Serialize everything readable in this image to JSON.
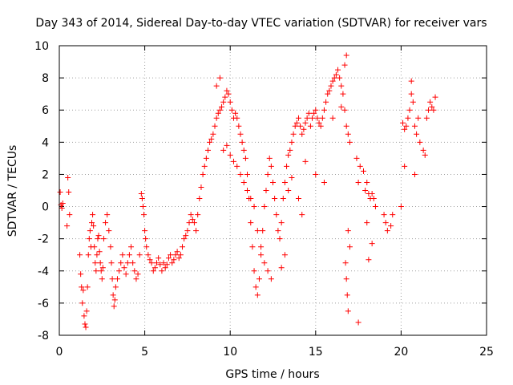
{
  "chart_data": {
    "type": "scatter",
    "title": "Day 343 of 2014, Sidereal Day-to-day VTEC variation (SDTVAR) for receiver vars",
    "xlabel": "GPS time / hours",
    "ylabel": "SDTVAR / TECUs",
    "xlim": [
      0,
      25
    ],
    "ylim": [
      -8,
      10
    ],
    "xticks": [
      0,
      5,
      10,
      15,
      20,
      25
    ],
    "yticks": [
      -8,
      -6,
      -4,
      -2,
      0,
      2,
      4,
      6,
      8,
      10
    ],
    "grid": true,
    "marker": "+",
    "color": "#ff0000",
    "series": [
      {
        "name": "SDTVAR",
        "x": [
          0.05,
          0.1,
          0.15,
          0.2,
          0.5,
          0.55,
          0.6,
          0.45,
          1.2,
          1.25,
          1.3,
          1.35,
          1.4,
          1.45,
          1.5,
          1.55,
          1.6,
          1.65,
          1.7,
          1.75,
          1.8,
          1.85,
          1.9,
          1.95,
          2.0,
          2.05,
          2.1,
          2.15,
          2.2,
          2.25,
          2.3,
          2.35,
          2.4,
          2.45,
          2.5,
          2.55,
          2.6,
          2.7,
          2.8,
          2.9,
          3.0,
          3.05,
          3.1,
          3.15,
          3.2,
          3.25,
          3.3,
          3.4,
          3.5,
          3.6,
          3.7,
          3.8,
          3.9,
          4.0,
          4.1,
          4.2,
          4.3,
          4.4,
          4.5,
          4.6,
          4.7,
          4.8,
          4.85,
          4.9,
          4.95,
          5.0,
          5.05,
          5.1,
          5.2,
          5.3,
          5.4,
          5.5,
          5.6,
          5.7,
          5.8,
          5.9,
          6.0,
          6.1,
          6.2,
          6.3,
          6.4,
          6.5,
          6.6,
          6.7,
          6.8,
          6.9,
          7.0,
          7.1,
          7.2,
          7.3,
          7.4,
          7.5,
          7.6,
          7.7,
          7.8,
          7.9,
          8.0,
          8.1,
          8.2,
          8.3,
          8.4,
          8.5,
          8.6,
          8.7,
          8.8,
          8.9,
          9.0,
          9.1,
          9.2,
          9.3,
          9.4,
          9.5,
          9.6,
          9.7,
          9.8,
          9.9,
          10.0,
          10.1,
          10.2,
          10.3,
          10.4,
          10.5,
          10.6,
          10.7,
          10.8,
          10.9,
          11.0,
          11.1,
          11.2,
          11.3,
          11.4,
          11.5,
          11.6,
          11.7,
          11.8,
          11.9,
          12.0,
          12.1,
          12.2,
          12.3,
          12.4,
          12.5,
          12.6,
          12.7,
          12.8,
          12.9,
          13.0,
          13.1,
          13.2,
          13.3,
          13.4,
          13.5,
          13.6,
          13.7,
          13.8,
          13.9,
          14.0,
          14.1,
          14.2,
          14.3,
          14.4,
          14.5,
          14.6,
          14.7,
          14.8,
          14.9,
          15.0,
          15.1,
          15.2,
          15.3,
          15.4,
          15.5,
          15.6,
          15.7,
          15.8,
          15.9,
          16.0,
          16.1,
          16.2,
          16.3,
          16.4,
          16.5,
          16.6,
          16.7,
          16.8,
          16.9,
          17.0,
          17.4,
          17.5,
          17.6,
          17.8,
          17.9,
          18.0,
          18.1,
          18.2,
          18.3,
          18.4,
          18.5,
          19.0,
          19.1,
          19.2,
          19.4,
          19.5,
          20.0,
          20.1,
          20.2,
          20.3,
          20.4,
          20.5,
          20.6,
          20.7,
          20.8,
          20.9,
          21.0,
          21.1,
          21.3,
          21.4,
          21.5,
          21.6,
          21.7,
          21.8,
          21.9,
          22.0,
          9.2,
          9.4,
          9.6,
          9.8,
          10.0,
          10.2,
          10.4,
          10.6,
          10.8,
          11.0,
          11.2,
          11.4,
          11.6,
          11.8,
          12.0,
          12.2,
          12.4,
          13.0,
          13.2,
          13.4,
          13.6,
          14.0,
          14.2,
          14.4,
          15.0,
          15.5,
          16.0,
          16.5,
          16.7,
          16.8,
          16.9,
          17.0,
          16.75,
          16.8,
          16.85,
          16.9,
          17.5,
          18.0,
          18.1,
          18.3,
          20.2,
          20.6,
          20.8
        ],
        "y": [
          0.9,
          0.1,
          -0.1,
          0.2,
          1.8,
          0.9,
          -0.5,
          -1.2,
          -3.0,
          -4.2,
          -5.0,
          -6.0,
          -5.2,
          -6.8,
          -7.3,
          -7.5,
          -6.5,
          -5.0,
          -3.0,
          -2.0,
          -1.5,
          -2.5,
          -1.0,
          -0.5,
          -1.2,
          -2.5,
          -3.5,
          -4.0,
          -3.0,
          -2.0,
          -1.8,
          -2.8,
          -3.5,
          -4.0,
          -4.5,
          -3.8,
          -2.0,
          -1.0,
          -0.5,
          -1.5,
          -2.5,
          -3.5,
          -4.5,
          -5.5,
          -6.2,
          -5.8,
          -5.0,
          -4.5,
          -4.0,
          -3.5,
          -3.0,
          -3.8,
          -4.2,
          -3.5,
          -3.0,
          -2.5,
          -3.5,
          -4.0,
          -4.5,
          -4.2,
          -3.0,
          0.8,
          0.5,
          0.0,
          -0.5,
          -1.5,
          -2.0,
          -2.5,
          -3.0,
          -3.3,
          -3.5,
          -4.0,
          -3.8,
          -3.5,
          -3.2,
          -3.6,
          -4.0,
          -3.5,
          -3.8,
          -3.6,
          -3.2,
          -3.0,
          -3.5,
          -3.3,
          -3.0,
          -2.8,
          -3.2,
          -3.0,
          -2.5,
          -2.0,
          -1.8,
          -1.5,
          -1.0,
          -0.5,
          -0.8,
          -1.0,
          -1.5,
          -0.5,
          0.5,
          1.2,
          2.0,
          2.5,
          3.0,
          3.5,
          4.0,
          4.2,
          4.5,
          5.0,
          5.5,
          5.8,
          6.0,
          6.2,
          6.5,
          6.8,
          7.2,
          7.0,
          6.5,
          6.0,
          5.5,
          5.8,
          5.5,
          5.0,
          4.5,
          4.0,
          3.5,
          3.0,
          2.0,
          0.5,
          -1.0,
          -2.5,
          -4.0,
          -5.0,
          -5.5,
          -4.5,
          -3.0,
          -1.5,
          0.0,
          1.0,
          2.0,
          3.0,
          2.5,
          1.5,
          0.5,
          -0.5,
          -1.5,
          -2.0,
          -1.0,
          0.5,
          1.5,
          2.5,
          3.2,
          3.5,
          4.0,
          4.5,
          5.0,
          5.2,
          5.5,
          5.0,
          4.5,
          4.8,
          5.2,
          5.5,
          5.8,
          5.0,
          5.5,
          5.8,
          6.0,
          5.5,
          5.2,
          5.0,
          5.5,
          6.0,
          6.5,
          7.0,
          7.2,
          7.5,
          7.8,
          8.0,
          8.2,
          8.5,
          8.0,
          7.5,
          7.0,
          6.0,
          5.0,
          4.5,
          4.0,
          3.0,
          1.5,
          2.5,
          2.2,
          1.0,
          1.5,
          0.8,
          0.5,
          0.8,
          0.5,
          0.0,
          -0.5,
          -1.0,
          -1.5,
          -1.2,
          -0.5,
          0.0,
          5.2,
          4.8,
          5.0,
          5.5,
          6.0,
          7.0,
          6.5,
          5.0,
          4.5,
          5.5,
          4.0,
          3.5,
          3.2,
          5.5,
          6.0,
          6.5,
          6.2,
          6.0,
          6.8,
          7.5,
          8.0,
          3.5,
          3.8,
          3.2,
          2.8,
          2.5,
          2.0,
          1.5,
          1.0,
          0.5,
          0.0,
          -1.5,
          -2.5,
          -3.5,
          -4.0,
          -4.5,
          -3.8,
          -3.0,
          1.0,
          1.8,
          0.5,
          -0.5,
          2.8,
          2.0,
          1.5,
          5.5,
          6.2,
          8.8,
          9.4,
          -1.5,
          -2.5,
          -3.5,
          -4.5,
          -5.5,
          -6.5,
          -7.2,
          -1.0,
          -3.3,
          -2.3,
          2.5,
          7.8,
          2.0
        ]
      }
    ]
  }
}
